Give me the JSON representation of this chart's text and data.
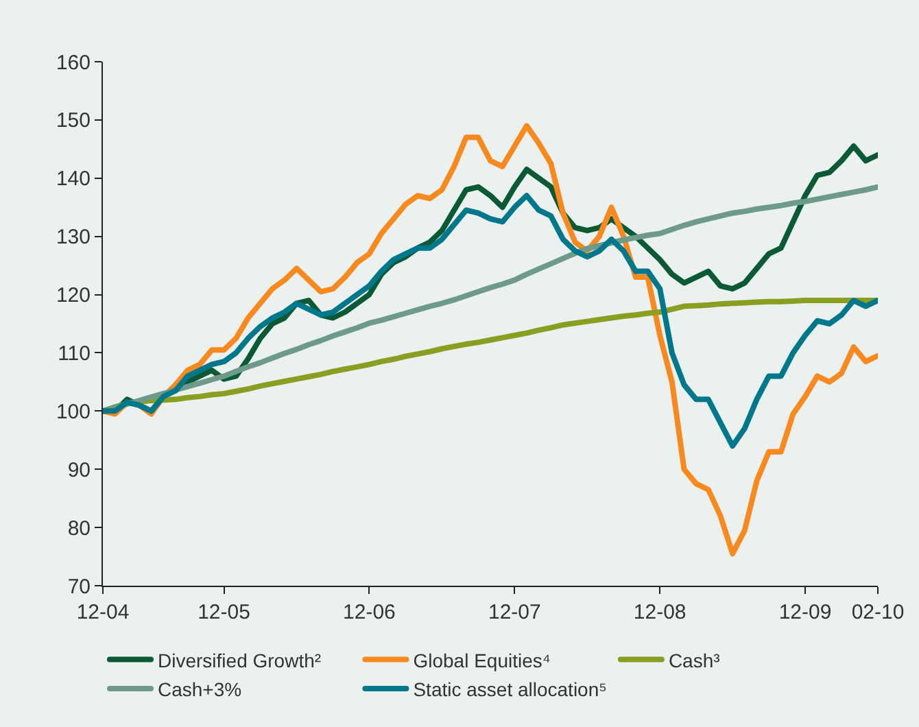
{
  "chart_data": {
    "type": "line",
    "categories": [
      "12-04",
      null,
      null,
      null,
      null,
      null,
      null,
      null,
      null,
      null,
      "12-05",
      null,
      null,
      null,
      null,
      null,
      null,
      null,
      null,
      null,
      null,
      null,
      "12-06",
      null,
      null,
      null,
      null,
      null,
      null,
      null,
      null,
      null,
      null,
      null,
      "12-07",
      null,
      null,
      null,
      null,
      null,
      null,
      null,
      null,
      null,
      null,
      null,
      "12-08",
      null,
      null,
      null,
      null,
      null,
      null,
      null,
      null,
      null,
      null,
      null,
      "12-09",
      null,
      null,
      null,
      null,
      null,
      "02-10"
    ],
    "ylim": [
      70,
      160
    ],
    "yticks": [
      70,
      80,
      90,
      100,
      110,
      120,
      130,
      140,
      150,
      160
    ],
    "grid": false,
    "legend": "bottom",
    "series": [
      {
        "name": "Diversified Growth²",
        "color": "#0b5a35",
        "values": [
          100,
          100,
          102,
          101,
          100,
          102.5,
          104,
          105,
          106,
          107,
          105.5,
          106,
          109,
          112.5,
          115,
          116,
          118.5,
          119,
          116.5,
          116,
          117,
          118.5,
          120,
          123.5,
          125.5,
          126.5,
          128,
          129,
          131,
          134.5,
          138,
          138.5,
          137,
          135,
          138.5,
          141.5,
          140,
          138.5,
          134,
          131.5,
          131,
          131.5,
          133,
          131.5,
          130,
          128,
          126,
          123.5,
          122,
          123,
          124,
          121.5,
          121,
          122,
          124.5,
          127,
          128,
          132.5,
          137,
          140.5,
          141,
          143,
          145.5,
          143,
          144
        ]
      },
      {
        "name": "Global Equities⁴",
        "color": "#f7891f",
        "values": [
          100,
          99.5,
          101.5,
          101,
          99.5,
          102.5,
          104.5,
          107,
          108,
          110.5,
          110.5,
          112.5,
          116,
          118.5,
          121,
          122.5,
          124.5,
          122.5,
          120.5,
          121,
          123,
          125.5,
          127,
          130.5,
          133,
          135.5,
          137,
          136.5,
          138,
          142,
          147,
          147,
          143,
          142,
          145.5,
          149,
          146,
          142.5,
          134,
          129,
          127.5,
          130,
          135,
          130,
          123,
          123,
          113,
          105,
          90,
          87.5,
          86.5,
          82,
          75.5,
          79.5,
          88,
          93,
          93,
          99.5,
          102.5,
          106,
          105,
          106.5,
          111,
          108.5,
          109.5
        ]
      },
      {
        "name": "Cash³",
        "color": "#8a9e22",
        "values": [
          100,
          100.7,
          101.3,
          101.6,
          101.8,
          101.9,
          102,
          102.3,
          102.5,
          102.8,
          103,
          103.4,
          103.8,
          104.3,
          104.7,
          105.1,
          105.5,
          105.9,
          106.3,
          106.8,
          107.2,
          107.6,
          108,
          108.5,
          108.9,
          109.4,
          109.8,
          110.2,
          110.7,
          111.1,
          111.5,
          111.8,
          112.2,
          112.6,
          113,
          113.4,
          113.9,
          114.3,
          114.8,
          115.1,
          115.4,
          115.7,
          116,
          116.3,
          116.5,
          116.8,
          117,
          117.5,
          118,
          118.1,
          118.2,
          118.4,
          118.5,
          118.6,
          118.7,
          118.8,
          118.8,
          118.9,
          119,
          119,
          119,
          119,
          119,
          119,
          119
        ]
      },
      {
        "name": "Cash+3%",
        "color": "#6e9a8a",
        "values": [
          100,
          100.6,
          101.2,
          101.8,
          102.4,
          103,
          103.6,
          104.2,
          104.8,
          105.4,
          106,
          106.8,
          107.6,
          108.3,
          109.1,
          109.9,
          110.6,
          111.4,
          112.1,
          112.9,
          113.6,
          114.3,
          115.1,
          115.6,
          116.2,
          116.8,
          117.4,
          118,
          118.5,
          119.1,
          119.8,
          120.5,
          121.2,
          121.8,
          122.5,
          123.5,
          124.4,
          125.3,
          126.2,
          127.1,
          127.9,
          128.4,
          128.9,
          129.4,
          129.8,
          130.2,
          130.5,
          131.2,
          131.9,
          132.5,
          133,
          133.5,
          134,
          134.3,
          134.7,
          135,
          135.3,
          135.7,
          136,
          136.4,
          136.8,
          137.2,
          137.6,
          138,
          138.5
        ]
      },
      {
        "name": "Static asset allocation⁵",
        "color": "#00778a",
        "values": [
          100,
          100,
          101.5,
          101,
          100,
          102.5,
          103.5,
          106,
          107,
          108,
          108.5,
          110,
          112.5,
          114.5,
          116,
          117,
          118.5,
          117.5,
          116.5,
          117,
          118.5,
          120,
          121.5,
          124,
          126,
          127,
          128,
          128,
          129.5,
          132,
          134.5,
          134,
          133,
          132.5,
          135,
          137,
          134.5,
          133.5,
          129.5,
          127.5,
          126.5,
          127.5,
          129.5,
          127.5,
          124,
          124,
          121,
          110,
          104.5,
          102,
          102,
          98,
          94,
          97,
          102,
          106,
          106,
          110,
          113,
          115.5,
          115,
          116.5,
          119,
          118,
          119
        ]
      }
    ]
  }
}
